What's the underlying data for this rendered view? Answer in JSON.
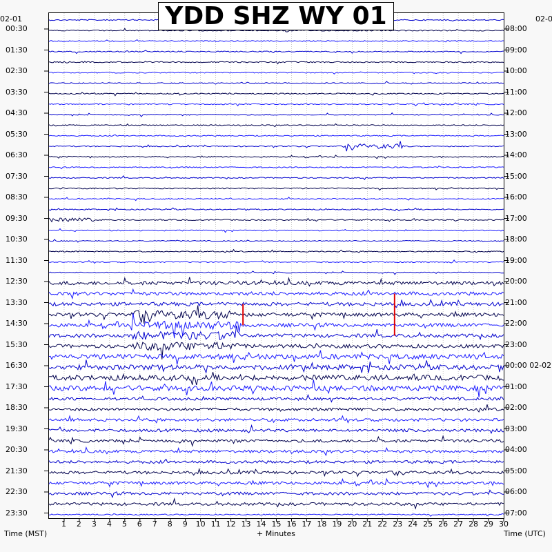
{
  "chart_data": {
    "type": "line",
    "title": "YDD SHZ WY 01",
    "left_date": "02-01",
    "right_date": "02-0",
    "xlabel": "+ Minutes",
    "left_axis_label": "Time (MST)",
    "right_axis_label": "Time (UTC)",
    "xlim": [
      0,
      30
    ],
    "x_ticks": [
      "1",
      "2",
      "3",
      "4",
      "5",
      "6",
      "7",
      "8",
      "9",
      "10",
      "11",
      "12",
      "13",
      "14",
      "15",
      "16",
      "17",
      "18",
      "19",
      "20",
      "21",
      "22",
      "23",
      "24",
      "25",
      "26",
      "27",
      "28",
      "29",
      "30"
    ],
    "left_ticks": [
      "00:30",
      "01:30",
      "02:30",
      "03:30",
      "04:30",
      "05:30",
      "06:30",
      "07:30",
      "08:30",
      "09:30",
      "10:30",
      "11:30",
      "12:30",
      "13:30",
      "14:30",
      "15:30",
      "16:30",
      "17:30",
      "18:30",
      "19:30",
      "20:30",
      "21:30",
      "22:30",
      "23:30"
    ],
    "right_ticks": [
      "08:00",
      "09:00",
      "10:00",
      "11:00",
      "12:00",
      "13:00",
      "14:00",
      "15:00",
      "16:00",
      "17:00",
      "18:00",
      "19:00",
      "20:00",
      "21:00",
      "22:00",
      "23:00",
      "00:00 02-02",
      "01:00",
      "02:00",
      "03:00",
      "04:00",
      "05:00",
      "06:00",
      "07:00"
    ],
    "trace_count": 48,
    "trace_colors": [
      "#0000cd",
      "#00004d",
      "#1a1aff"
    ],
    "event_color": "#e00000",
    "grid": true
  }
}
